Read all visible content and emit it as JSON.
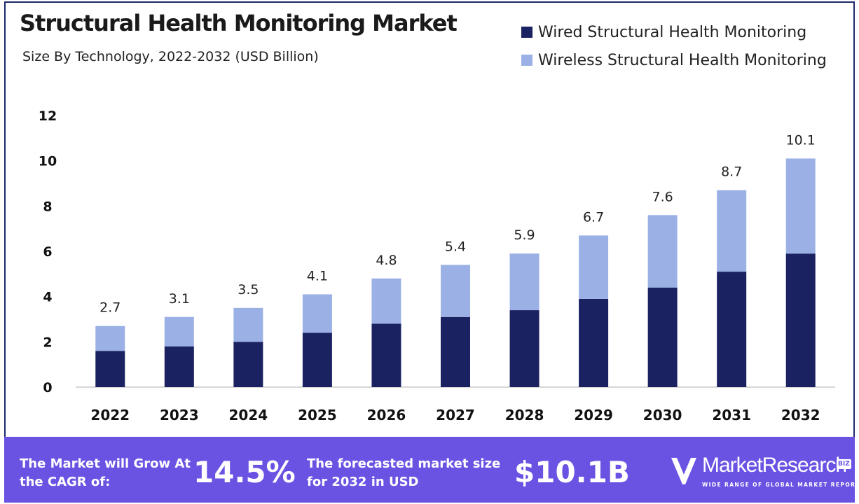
{
  "title": "Structural Health Monitoring Market",
  "subtitle": "Size By Technology, 2022-2032 (USD Billion)",
  "colors": {
    "wired": "#1b2262",
    "wireless": "#9bb1e6",
    "footer": "#6a52e3",
    "frame": "#1c2a6d"
  },
  "chart_data": {
    "type": "bar",
    "stacked": true,
    "categories": [
      "2022",
      "2023",
      "2024",
      "2025",
      "2026",
      "2027",
      "2028",
      "2029",
      "2030",
      "2031",
      "2032"
    ],
    "series": [
      {
        "name": "Wired Structural Health Monitoring",
        "values": [
          1.6,
          1.8,
          2.0,
          2.4,
          2.8,
          3.1,
          3.4,
          3.9,
          4.4,
          5.1,
          5.9
        ]
      },
      {
        "name": "Wireless Structural Health Monitoring",
        "values": [
          1.1,
          1.3,
          1.5,
          1.7,
          2.0,
          2.3,
          2.5,
          2.8,
          3.2,
          3.6,
          4.2
        ]
      }
    ],
    "totals": [
      "2.7",
      "3.1",
      "3.5",
      "4.1",
      "4.8",
      "5.4",
      "5.9",
      "6.7",
      "7.6",
      "8.7",
      "10.1"
    ],
    "yticks": [
      "0",
      "2",
      "4",
      "6",
      "8",
      "10",
      "12"
    ],
    "ylim": [
      0,
      12
    ],
    "grid": false,
    "legend_position": "top-right"
  },
  "footer": {
    "cagr_label": "The Market will Grow At the CAGR of:",
    "cagr_value": "14.5%",
    "forecast_label": "The forecasted market size for 2032 in USD",
    "forecast_value": "$10.1B",
    "brand_name": "MarketResearch",
    "brand_badge": "BIZ",
    "brand_tagline": "WIDE RANGE OF GLOBAL MARKET REPORTS"
  }
}
